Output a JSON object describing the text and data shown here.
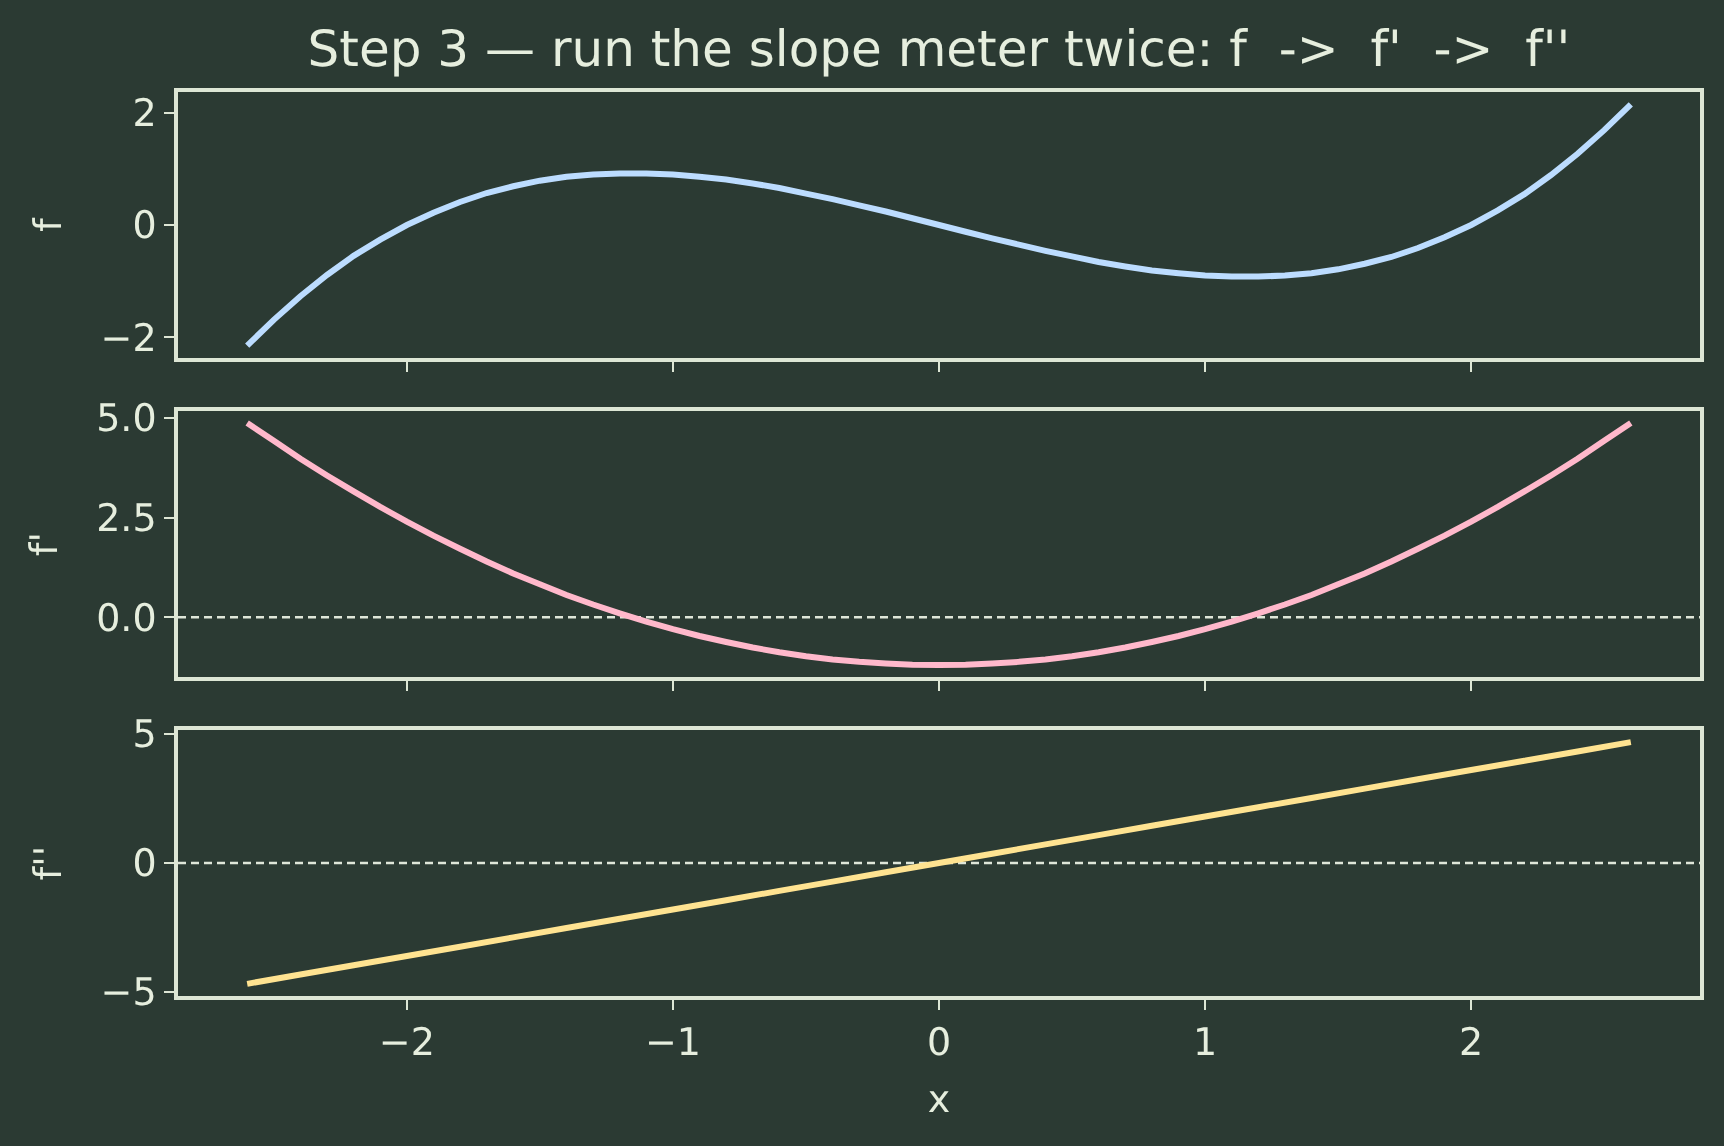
{
  "chart_data": [
    {
      "type": "line",
      "title": "Step 3 — run the slope meter twice: f  ->  f'  ->  f''",
      "ylabel": "f",
      "xlim": [
        -2.86,
        2.86
      ],
      "xticks": [
        -2,
        -1,
        0,
        1,
        2
      ],
      "ylim": [
        -2.37,
        2.37
      ],
      "yticks": [
        -2,
        0,
        2
      ],
      "tick_labels": "y",
      "marker": "none",
      "line_style": "solid",
      "x": [
        -2.6,
        -2.5,
        -2.4,
        -2.3,
        -2.2,
        -2.1,
        -2.0,
        -1.9,
        -1.8,
        -1.7,
        -1.6,
        -1.5,
        -1.4,
        -1.3,
        -1.2,
        -1.1,
        -1.0,
        -0.9,
        -0.8,
        -0.7,
        -0.6,
        -0.5,
        -0.4,
        -0.3,
        -0.2,
        -0.1,
        0,
        0.1,
        0.2,
        0.3,
        0.4,
        0.5,
        0.6,
        0.7,
        0.8,
        0.9,
        1.0,
        1.1,
        1.2,
        1.3,
        1.4,
        1.5,
        1.6,
        1.7,
        1.8,
        1.9,
        2.0,
        2.1,
        2.2,
        2.3,
        2.4,
        2.5,
        2.6
      ],
      "series": [
        {
          "color": "#bcdcff",
          "values": [
            -2.15,
            -1.69,
            -1.27,
            -0.89,
            -0.55,
            -0.26,
            0.0,
            0.22,
            0.41,
            0.57,
            0.69,
            0.79,
            0.86,
            0.9,
            0.92,
            0.92,
            0.9,
            0.86,
            0.81,
            0.74,
            0.66,
            0.56,
            0.46,
            0.35,
            0.24,
            0.12,
            0.0,
            -0.12,
            -0.24,
            -0.35,
            -0.46,
            -0.56,
            -0.66,
            -0.74,
            -0.81,
            -0.86,
            -0.9,
            -0.92,
            -0.92,
            -0.9,
            -0.86,
            -0.79,
            -0.69,
            -0.57,
            -0.41,
            -0.22,
            0.0,
            0.26,
            0.55,
            0.89,
            1.27,
            1.69,
            2.15
          ]
        }
      ]
    },
    {
      "type": "line",
      "ylabel": "f'",
      "xlim": [
        -2.86,
        2.86
      ],
      "xticks": [
        -2,
        -1,
        0,
        1,
        2
      ],
      "ylim": [
        -1.5,
        5.18
      ],
      "yticks": [
        {
          "value": 0,
          "label": "0.0"
        },
        2.5,
        {
          "value": 5,
          "label": "5.0"
        }
      ],
      "tick_labels": "y",
      "marker": "none",
      "line_style": "solid",
      "x": [
        -2.6,
        -2.5,
        -2.4,
        -2.3,
        -2.2,
        -2.1,
        -2.0,
        -1.9,
        -1.8,
        -1.7,
        -1.6,
        -1.5,
        -1.4,
        -1.3,
        -1.2,
        -1.1,
        -1.0,
        -0.9,
        -0.8,
        -0.7,
        -0.6,
        -0.5,
        -0.4,
        -0.3,
        -0.2,
        -0.1,
        0,
        0.1,
        0.2,
        0.3,
        0.4,
        0.5,
        0.6,
        0.7,
        0.8,
        0.9,
        1.0,
        1.1,
        1.2,
        1.3,
        1.4,
        1.5,
        1.6,
        1.7,
        1.8,
        1.9,
        2.0,
        2.1,
        2.2,
        2.3,
        2.4,
        2.5,
        2.6
      ],
      "series": [
        {
          "color": "#ffb8cb",
          "values": [
            4.88,
            4.43,
            3.98,
            3.56,
            3.16,
            2.77,
            2.4,
            2.05,
            1.72,
            1.4,
            1.1,
            0.83,
            0.56,
            0.32,
            0.1,
            -0.11,
            -0.3,
            -0.47,
            -0.62,
            -0.76,
            -0.88,
            -0.98,
            -1.06,
            -1.12,
            -1.16,
            -1.19,
            -1.2,
            -1.19,
            -1.16,
            -1.12,
            -1.06,
            -0.98,
            -0.88,
            -0.76,
            -0.62,
            -0.47,
            -0.3,
            -0.11,
            0.1,
            0.32,
            0.56,
            0.83,
            1.1,
            1.4,
            1.72,
            2.05,
            2.4,
            2.77,
            3.16,
            3.56,
            3.98,
            4.43,
            4.88
          ]
        }
      ],
      "ref_lines": [
        {
          "axis": "y",
          "value": 0,
          "color": "#dfe6d9",
          "line_style": "dashed"
        }
      ]
    },
    {
      "type": "line",
      "ylabel": "f''",
      "xlabel": "x",
      "xlim": [
        -2.86,
        2.86
      ],
      "xticks": [
        -2,
        -1,
        0,
        1,
        2
      ],
      "ylim": [
        -5.15,
        5.15
      ],
      "yticks": [
        -5,
        0,
        5
      ],
      "marker": "none",
      "line_style": "solid",
      "x": [
        -2.6,
        -2.4,
        -2.2,
        -2.0,
        -1.8,
        -1.6,
        -1.4,
        -1.2,
        -1.0,
        -0.8,
        -0.6,
        -0.4,
        -0.2,
        0,
        0.2,
        0.4,
        0.6,
        0.8,
        1.0,
        1.2,
        1.4,
        1.6,
        1.8,
        2.0,
        2.2,
        2.4,
        2.6
      ],
      "series": [
        {
          "color": "#ffe391",
          "values": [
            -4.68,
            -4.32,
            -3.96,
            -3.6,
            -3.24,
            -2.88,
            -2.52,
            -2.16,
            -1.8,
            -1.44,
            -1.08,
            -0.72,
            -0.36,
            0.0,
            0.36,
            0.72,
            1.08,
            1.44,
            1.8,
            2.16,
            2.52,
            2.88,
            3.24,
            3.6,
            3.96,
            4.32,
            4.68
          ]
        }
      ],
      "ref_lines": [
        {
          "axis": "y",
          "value": 0,
          "color": "#dfe6d9",
          "line_style": "dashed"
        }
      ]
    }
  ]
}
